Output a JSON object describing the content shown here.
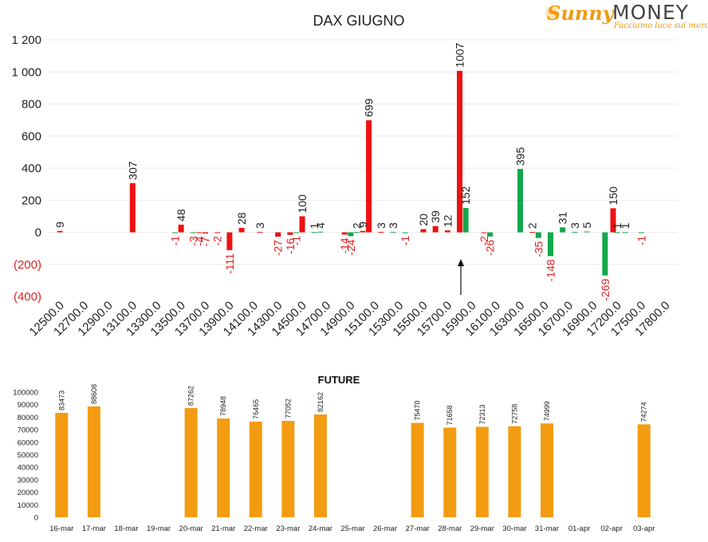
{
  "logo": {
    "brand_part1": "Sunny",
    "brand_part2": "MONEY",
    "tagline": "Facciamo luce sui mercati",
    "colors": {
      "orange": "#f29a12",
      "gray": "#444444"
    }
  },
  "chart_data": [
    {
      "type": "bar",
      "title": "DAX GIUGNO",
      "ylim": [
        -400,
        1200
      ],
      "yticks": [
        -400,
        -200,
        0,
        200,
        400,
        600,
        800,
        1000,
        1200
      ],
      "ytick_labels": [
        "(400)",
        "(200)",
        "0",
        "200",
        "400",
        "600",
        "800",
        "1 000",
        "1 200"
      ],
      "categories": [
        "12500.0",
        "12700.0",
        "12900.0",
        "13100.0",
        "13300.0",
        "13500.0",
        "13700.0",
        "13900.0",
        "14100.0",
        "14300.0",
        "14500.0",
        "14700.0",
        "14900.0",
        "15100.0",
        "15300.0",
        "15500.0",
        "15700.0",
        "15900.0",
        "16100.0",
        "16300.0",
        "16500.0",
        "16700.0",
        "16900.0",
        "17200.0",
        "17500.0",
        "17800.0"
      ],
      "grid": true,
      "colors": {
        "red": "#ee1111",
        "green": "#13a84b",
        "negative_label": "#dd2222"
      },
      "annotation": "arrow near 15900.0",
      "bars": [
        {
          "x": 12500,
          "value": 9,
          "color": "red"
        },
        {
          "x": 13100,
          "value": 307,
          "color": "red"
        },
        {
          "x": 13450,
          "value": -1,
          "color": "green"
        },
        {
          "x": 13500,
          "value": 48,
          "color": "red"
        },
        {
          "x": 13600,
          "value": -3,
          "color": "green"
        },
        {
          "x": 13650,
          "value": -4,
          "color": "red"
        },
        {
          "x": 13700,
          "value": -7,
          "color": "red"
        },
        {
          "x": 13800,
          "value": -2,
          "color": "red"
        },
        {
          "x": 13900,
          "value": -111,
          "color": "red"
        },
        {
          "x": 14000,
          "value": 28,
          "color": "red"
        },
        {
          "x": 14150,
          "value": 3,
          "color": "red"
        },
        {
          "x": 14300,
          "value": -27,
          "color": "red"
        },
        {
          "x": 14400,
          "value": -16,
          "color": "red"
        },
        {
          "x": 14450,
          "value": -1,
          "color": "green"
        },
        {
          "x": 14500,
          "value": 100,
          "color": "red"
        },
        {
          "x": 14600,
          "value": 1,
          "color": "green"
        },
        {
          "x": 14650,
          "value": 4,
          "color": "green"
        },
        {
          "x": 14850,
          "value": -14,
          "color": "red"
        },
        {
          "x": 14900,
          "value": -24,
          "color": "green"
        },
        {
          "x": 14950,
          "value": 2,
          "color": "green"
        },
        {
          "x": 15000,
          "value": 9,
          "color": "red"
        },
        {
          "x": 15050,
          "value": 699,
          "color": "red"
        },
        {
          "x": 15150,
          "value": 3,
          "color": "red"
        },
        {
          "x": 15250,
          "value": 3,
          "color": "green"
        },
        {
          "x": 15350,
          "value": -1,
          "color": "green"
        },
        {
          "x": 15500,
          "value": 20,
          "color": "red"
        },
        {
          "x": 15600,
          "value": 39,
          "color": "red"
        },
        {
          "x": 15700,
          "value": 12,
          "color": "red"
        },
        {
          "x": 15800,
          "value": 1007,
          "color": "red"
        },
        {
          "x": 15850,
          "value": 152,
          "color": "green"
        },
        {
          "x": 16000,
          "value": -2,
          "color": "red"
        },
        {
          "x": 16050,
          "value": -26,
          "color": "green"
        },
        {
          "x": 16300,
          "value": 395,
          "color": "green"
        },
        {
          "x": 16400,
          "value": 2,
          "color": "red"
        },
        {
          "x": 16450,
          "value": -35,
          "color": "green"
        },
        {
          "x": 16550,
          "value": -148,
          "color": "green"
        },
        {
          "x": 16650,
          "value": 31,
          "color": "green"
        },
        {
          "x": 16750,
          "value": 3,
          "color": "green"
        },
        {
          "x": 16850,
          "value": 5,
          "color": "green"
        },
        {
          "x": 17050,
          "value": -269,
          "color": "green"
        },
        {
          "x": 17150,
          "value": 150,
          "color": "red"
        },
        {
          "x": 17200,
          "value": 1,
          "color": "green"
        },
        {
          "x": 17300,
          "value": 1,
          "color": "green"
        },
        {
          "x": 17500,
          "value": -1,
          "color": "green"
        }
      ]
    },
    {
      "type": "bar",
      "title": "FUTURE",
      "ylim": [
        0,
        100000
      ],
      "yticks": [
        0,
        10000,
        20000,
        30000,
        40000,
        50000,
        60000,
        70000,
        80000,
        90000,
        100000
      ],
      "categories": [
        "16-mar",
        "17-mar",
        "18-mar",
        "19-mar",
        "20-mar",
        "21-mar",
        "22-mar",
        "23-mar",
        "24-mar",
        "25-mar",
        "26-mar",
        "27-mar",
        "28-mar",
        "29-mar",
        "30-mar",
        "31-mar",
        "01-apr",
        "02-apr",
        "03-apr"
      ],
      "values": [
        83473,
        88608,
        null,
        null,
        87262,
        78948,
        76465,
        77052,
        82162,
        null,
        null,
        75470,
        71658,
        72313,
        72758,
        74999,
        null,
        null,
        74274
      ],
      "labels": [
        "83473",
        "88608",
        "",
        "",
        "87262",
        "78948",
        "76465",
        "77052",
        "82162",
        "",
        "",
        "75470",
        "71658",
        "72313",
        "72758",
        "74999",
        "",
        "",
        "74274"
      ],
      "colors": {
        "bar": "#f39c12"
      }
    }
  ]
}
